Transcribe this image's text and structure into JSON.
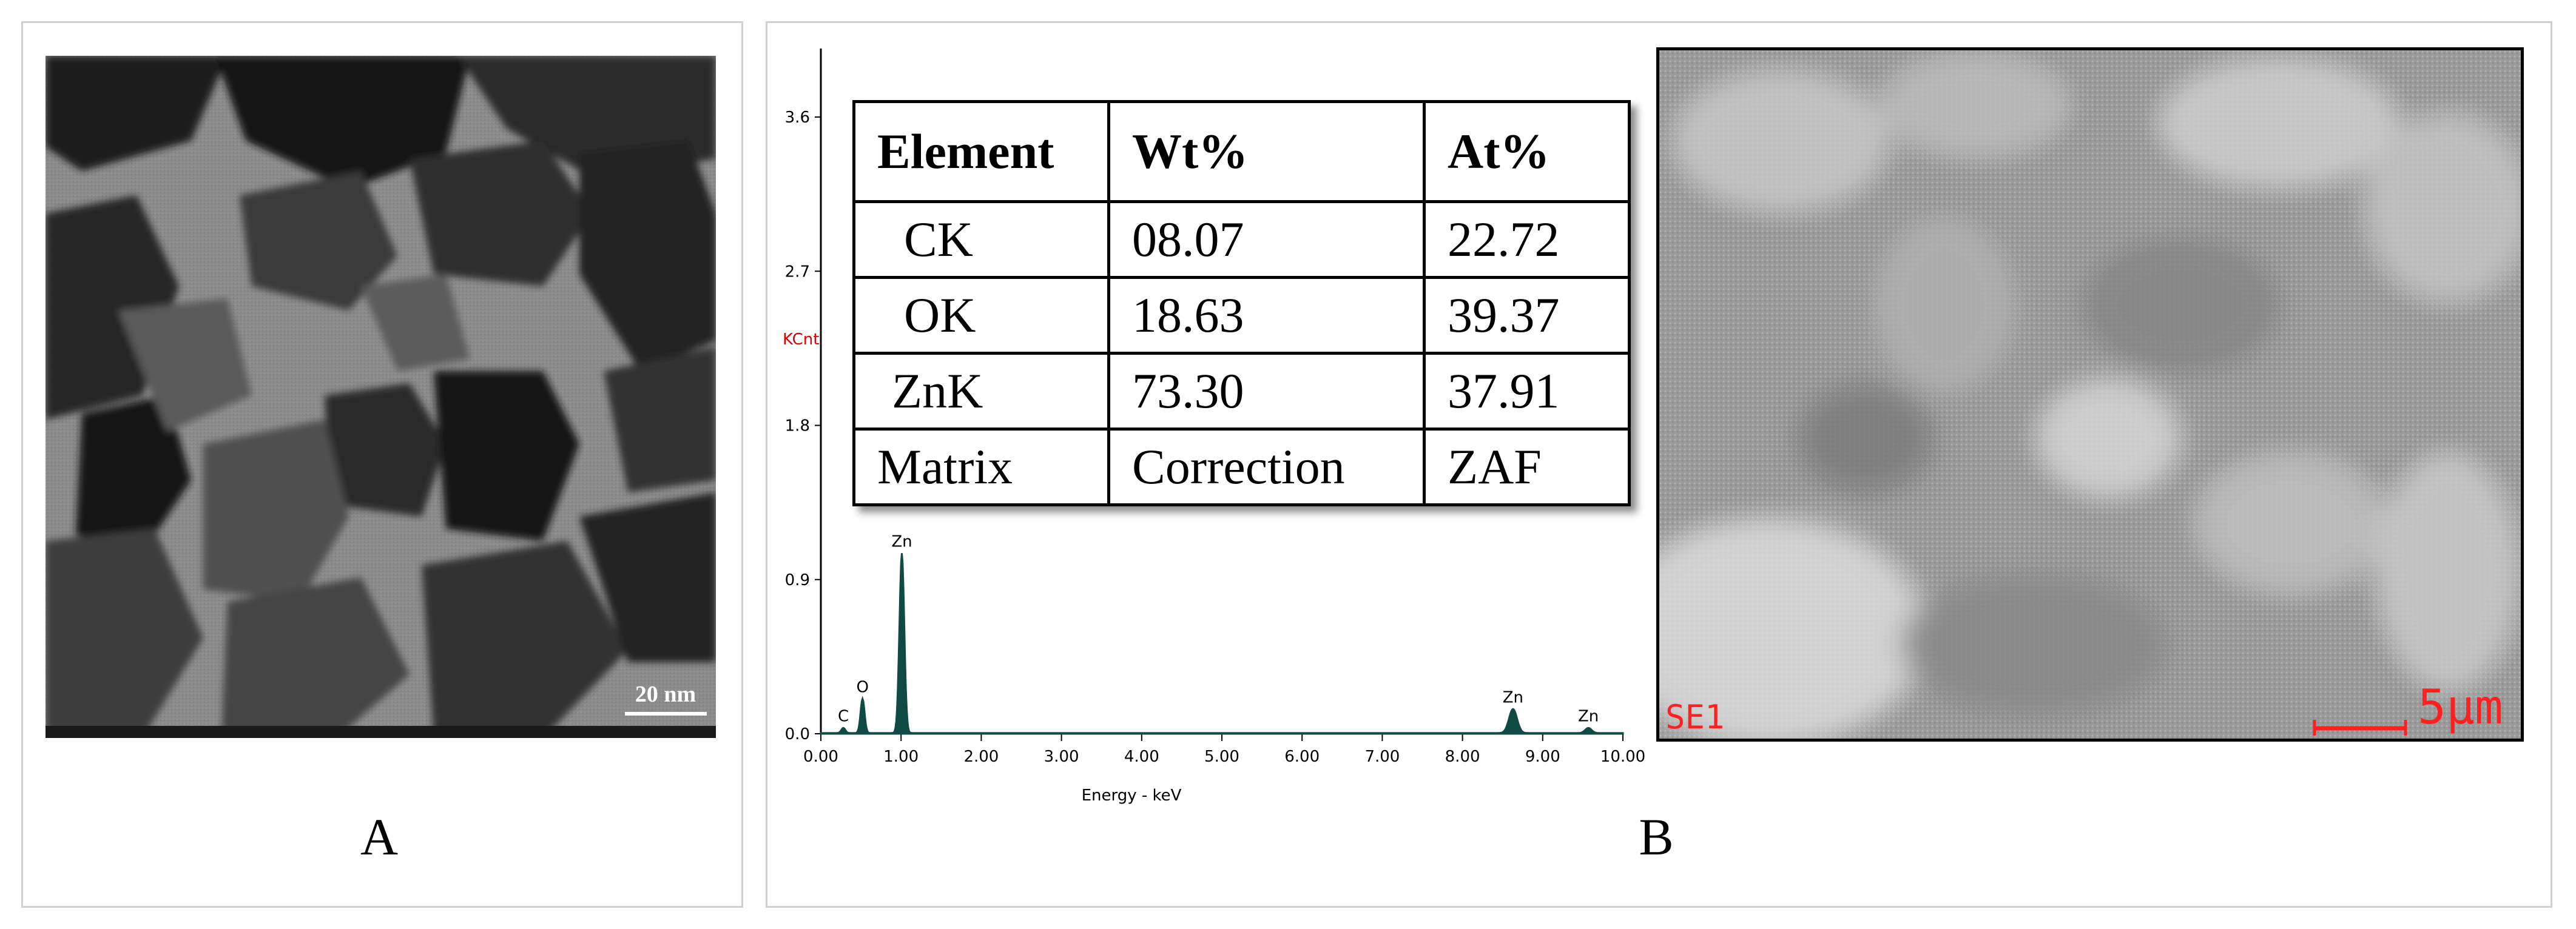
{
  "panel_a": {
    "label": "A",
    "scale_bar": "20 nm"
  },
  "panel_b": {
    "label": "B",
    "table": {
      "headers": [
        "Element",
        "Wt%",
        "At%"
      ],
      "rows": [
        [
          "CK",
          "08.07",
          "22.72"
        ],
        [
          "OK",
          "18.63",
          "39.37"
        ],
        [
          "ZnK",
          "73.30",
          "37.91"
        ],
        [
          "Matrix",
          "Correction",
          "ZAF"
        ]
      ]
    },
    "sem": {
      "detector": "SE1",
      "scale_bar": "5µm"
    }
  },
  "chart_data": {
    "type": "line",
    "xlabel": "Energy - keV",
    "ylabel": "KCnt",
    "xlim": [
      0,
      10
    ],
    "ylim": [
      0,
      4
    ],
    "x_ticks": [
      "0.00",
      "1.00",
      "2.00",
      "3.00",
      "4.00",
      "5.00",
      "6.00",
      "7.00",
      "8.00",
      "9.00",
      "10.00"
    ],
    "y_ticks": [
      "0.0",
      "0.9",
      "1.8",
      "2.7",
      "3.6"
    ],
    "peaks": [
      {
        "label": "C",
        "x": 0.28,
        "y": 0.03
      },
      {
        "label": "O",
        "x": 0.52,
        "y": 0.2
      },
      {
        "label": "Zn",
        "x": 1.01,
        "y": 1.05
      },
      {
        "label": "Zn",
        "x": 8.63,
        "y": 0.14
      },
      {
        "label": "Zn",
        "x": 9.57,
        "y": 0.03
      }
    ],
    "colors": {
      "spectrum": "#0f4a43",
      "axis_label": "#e00000"
    }
  }
}
